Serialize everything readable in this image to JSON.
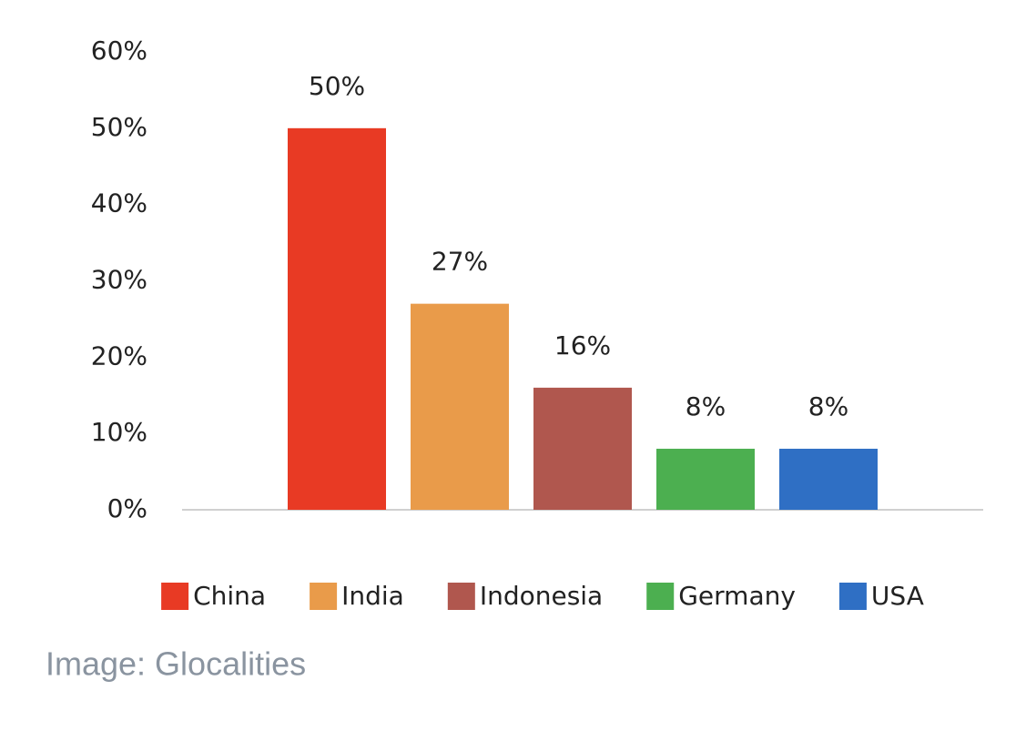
{
  "chart_data": {
    "type": "bar",
    "categories": [
      null
    ],
    "series": [
      {
        "name": "China",
        "color": "#e83a24",
        "values": [
          50
        ],
        "value_labels": [
          "50%"
        ]
      },
      {
        "name": "India",
        "color": "#e99b4a",
        "values": [
          27
        ],
        "value_labels": [
          "27%"
        ]
      },
      {
        "name": "Indonesia",
        "color": "#b0574e",
        "values": [
          16
        ],
        "value_labels": [
          "16%"
        ]
      },
      {
        "name": "Germany",
        "color": "#4caf50",
        "values": [
          8
        ],
        "value_labels": [
          "8%"
        ]
      },
      {
        "name": "USA",
        "color": "#2f6fc4",
        "values": [
          8
        ],
        "value_labels": [
          "8%"
        ]
      }
    ],
    "ylim": [
      0,
      60
    ],
    "yticks": [
      {
        "value": 0,
        "label": "0%"
      },
      {
        "value": 10,
        "label": "10%"
      },
      {
        "value": 20,
        "label": "20%"
      },
      {
        "value": 30,
        "label": "30%"
      },
      {
        "value": 40,
        "label": "40%"
      },
      {
        "value": 50,
        "label": "50%"
      },
      {
        "value": 60,
        "label": "60%"
      }
    ],
    "grid": false,
    "legend": "bottom",
    "source": "Image: Glocalities"
  }
}
